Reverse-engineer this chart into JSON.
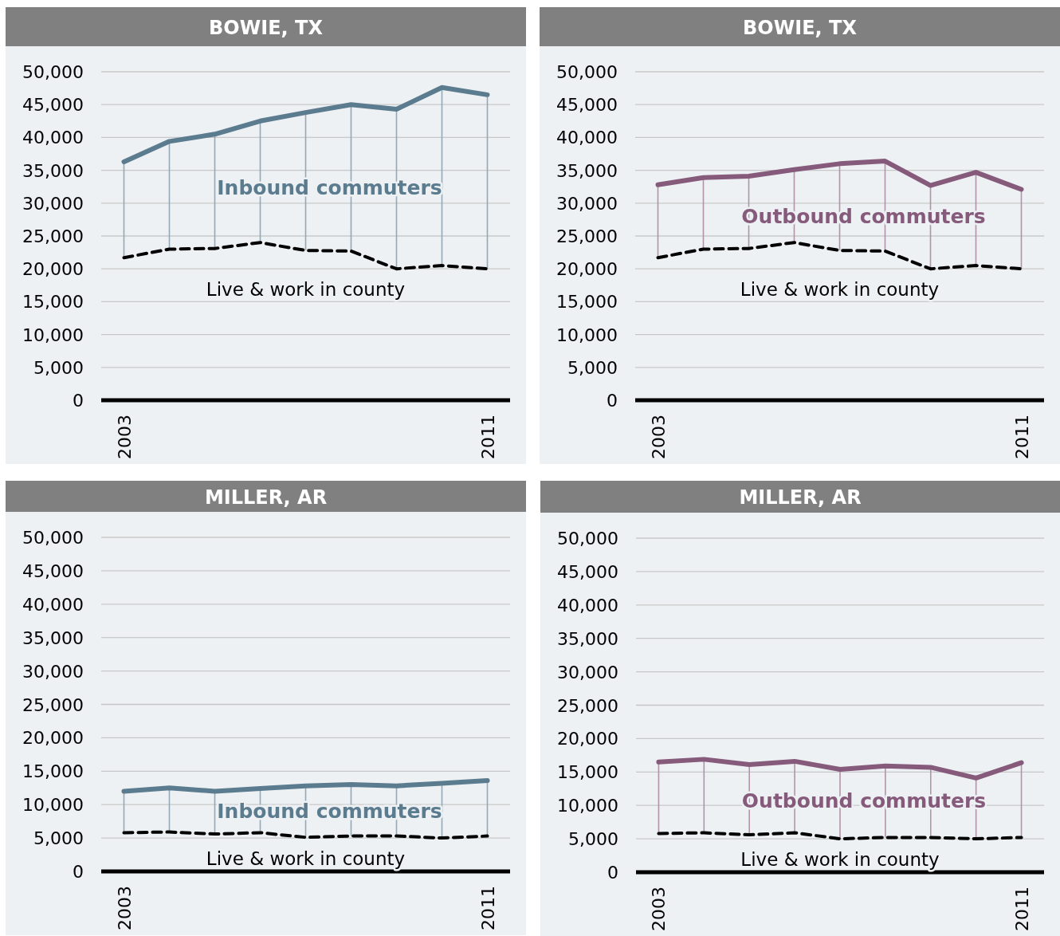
{
  "chart_data": [
    {
      "type": "line",
      "title": "BOWIE, TX",
      "categories": [
        "2003",
        null,
        null,
        null,
        null,
        null,
        null,
        null,
        "2011"
      ],
      "ylim": [
        0,
        50000
      ],
      "yticks": [
        {
          "value": 0,
          "label": "0"
        },
        {
          "value": 5000,
          "label": "5,000"
        },
        {
          "value": 10000,
          "label": "10,000"
        },
        {
          "value": 15000,
          "label": "15,000"
        },
        {
          "value": 20000,
          "label": "20,000"
        },
        {
          "value": 25000,
          "label": "25,000"
        },
        {
          "value": 30000,
          "label": "30,000"
        },
        {
          "value": 35000,
          "label": "35,000"
        },
        {
          "value": 40000,
          "label": "40,000"
        },
        {
          "value": 45000,
          "label": "45,000"
        },
        {
          "value": 50000,
          "label": "50,000"
        }
      ],
      "grid": "y",
      "marker": "none",
      "legend": false,
      "series": [
        {
          "name": "Inbound commuters",
          "color": "#5b7b8f",
          "line_style": "solid",
          "values": [
            36300,
            39400,
            40500,
            42500,
            43800,
            45000,
            44300,
            47600,
            46500
          ]
        },
        {
          "name": "Live & work in county",
          "color": "#000000",
          "line_style": "dashed",
          "values": [
            21700,
            23000,
            23100,
            24000,
            22800,
            22700,
            20000,
            20500,
            20000
          ]
        }
      ]
    },
    {
      "type": "line",
      "title": "BOWIE, TX",
      "categories": [
        "2003",
        null,
        null,
        null,
        null,
        null,
        null,
        null,
        "2011"
      ],
      "ylim": [
        0,
        50000
      ],
      "yticks": [
        {
          "value": 0,
          "label": "0"
        },
        {
          "value": 5000,
          "label": "5,000"
        },
        {
          "value": 10000,
          "label": "10,000"
        },
        {
          "value": 15000,
          "label": "15,000"
        },
        {
          "value": 20000,
          "label": "20,000"
        },
        {
          "value": 25000,
          "label": "25,000"
        },
        {
          "value": 30000,
          "label": "30,000"
        },
        {
          "value": 35000,
          "label": "35,000"
        },
        {
          "value": 40000,
          "label": "40,000"
        },
        {
          "value": 45000,
          "label": "45,000"
        },
        {
          "value": 50000,
          "label": "50,000"
        }
      ],
      "grid": "y",
      "marker": "none",
      "series": [
        {
          "name": "Outbound commuters",
          "color": "#865a7b",
          "line_style": "solid",
          "values": [
            32800,
            33900,
            34100,
            35100,
            36000,
            36400,
            32700,
            34700,
            32100
          ]
        },
        {
          "name": "Live & work in county",
          "color": "#000000",
          "line_style": "dashed",
          "values": [
            21700,
            23000,
            23100,
            24000,
            22800,
            22700,
            20000,
            20500,
            20000
          ]
        }
      ]
    },
    {
      "type": "line",
      "title": "MILLER, AR",
      "categories": [
        "2003",
        null,
        null,
        null,
        null,
        null,
        null,
        null,
        "2011"
      ],
      "ylim": [
        0,
        50000
      ],
      "yticks": [
        {
          "value": 0,
          "label": "0"
        },
        {
          "value": 5000,
          "label": "5,000"
        },
        {
          "value": 10000,
          "label": "10,000"
        },
        {
          "value": 15000,
          "label": "15,000"
        },
        {
          "value": 20000,
          "label": "20,000"
        },
        {
          "value": 25000,
          "label": "25,000"
        },
        {
          "value": 30000,
          "label": "30,000"
        },
        {
          "value": 35000,
          "label": "35,000"
        },
        {
          "value": 40000,
          "label": "40,000"
        },
        {
          "value": 45000,
          "label": "45,000"
        },
        {
          "value": 50000,
          "label": "50,000"
        }
      ],
      "grid": "y",
      "marker": "none",
      "series": [
        {
          "name": "Inbound commuters",
          "color": "#5b7b8f",
          "line_style": "solid",
          "values": [
            12000,
            12500,
            12000,
            12400,
            12800,
            13000,
            12800,
            13200,
            13600
          ]
        },
        {
          "name": "Live & work in county",
          "color": "#000000",
          "line_style": "dashed",
          "values": [
            5800,
            5900,
            5600,
            5800,
            5100,
            5300,
            5300,
            5000,
            5300
          ]
        }
      ]
    },
    {
      "type": "line",
      "title": "MILLER, AR",
      "categories": [
        "2003",
        null,
        null,
        null,
        null,
        null,
        null,
        null,
        "2011"
      ],
      "ylim": [
        0,
        50000
      ],
      "yticks": [
        {
          "value": 0,
          "label": "0"
        },
        {
          "value": 5000,
          "label": "5,000"
        },
        {
          "value": 10000,
          "label": "10,000"
        },
        {
          "value": 15000,
          "label": "15,000"
        },
        {
          "value": 20000,
          "label": "20,000"
        },
        {
          "value": 25000,
          "label": "25,000"
        },
        {
          "value": 30000,
          "label": "30,000"
        },
        {
          "value": 35000,
          "label": "35,000"
        },
        {
          "value": 40000,
          "label": "40,000"
        },
        {
          "value": 45000,
          "label": "45,000"
        },
        {
          "value": 50000,
          "label": "50,000"
        }
      ],
      "grid": "y",
      "marker": "none",
      "series": [
        {
          "name": "Outbound commuters",
          "color": "#865a7b",
          "line_style": "solid",
          "values": [
            16500,
            16900,
            16100,
            16600,
            15400,
            15900,
            15700,
            14100,
            16400
          ]
        },
        {
          "name": "Live & work in county",
          "color": "#000000",
          "line_style": "dashed",
          "values": [
            5800,
            5900,
            5600,
            5900,
            5000,
            5200,
            5200,
            5000,
            5200
          ]
        }
      ]
    }
  ]
}
